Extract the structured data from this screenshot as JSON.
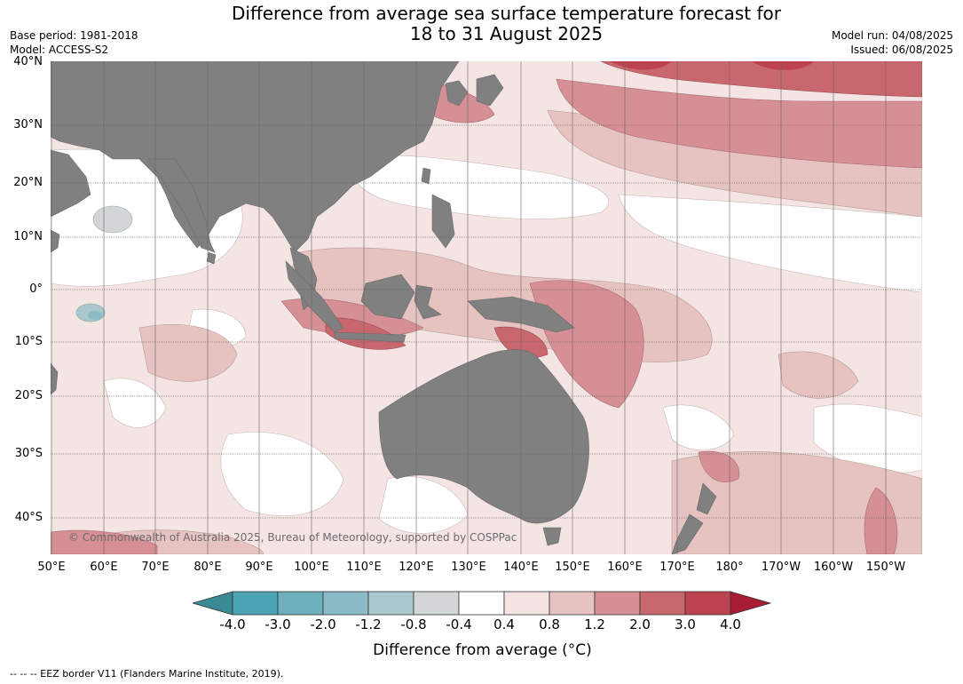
{
  "header": {
    "title_line1": "Difference from average sea surface temperature forecast for",
    "title_line2": "18 to 31 August 2025",
    "base_period": "Base period: 1981-2018",
    "model": "Model: ACCESS-S2",
    "model_run": "Model run: 04/08/2025",
    "issued": "Issued: 06/08/2025"
  },
  "map": {
    "latitude_labels": [
      "40°N",
      "30°N",
      "20°N",
      "10°N",
      "0°",
      "10°S",
      "20°S",
      "30°S",
      "40°S"
    ],
    "longitude_labels": [
      "50°E",
      "60°E",
      "70°E",
      "80°E",
      "90°E",
      "100°E",
      "110°E",
      "120°E",
      "130°E",
      "140°E",
      "150°E",
      "160°E",
      "170°E",
      "180°",
      "170°W",
      "160°W",
      "150°W"
    ],
    "copyright": "© Commonwealth of Australia 2025, Bureau of Meteorology, supported by COSPPac",
    "colors": {
      "land": "#808080",
      "grid": "#555555"
    }
  },
  "legend": {
    "ticks": [
      "-4.0",
      "-3.0",
      "-2.0",
      "-1.2",
      "-0.8",
      "-0.4",
      "0.4",
      "0.8",
      "1.2",
      "2.0",
      "3.0",
      "4.0"
    ],
    "colors": [
      "#3a8a95",
      "#4aa3b4",
      "#6cb0bd",
      "#8bbbc6",
      "#a9c7cc",
      "#d3d6d6",
      "#ffffff",
      "#f4e4e3",
      "#e6c3c0",
      "#d58f95",
      "#c9676f",
      "#bd4351",
      "#a81c34"
    ],
    "label": "Difference from average (°C)"
  },
  "footer": {
    "note": "--  --  -- EEZ border V11 (Flanders Marine Institute, 2019)."
  }
}
